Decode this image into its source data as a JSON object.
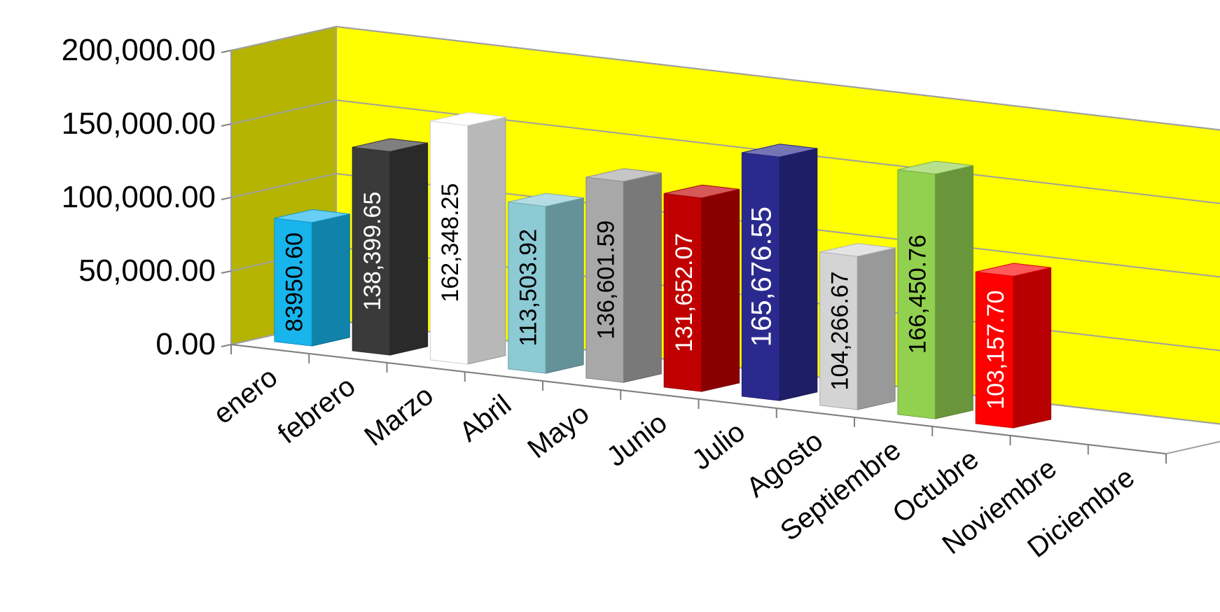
{
  "chart_data": {
    "type": "bar",
    "categories": [
      "enero",
      "febrero",
      "Marzo",
      "Abril",
      "Mayo",
      "Junio",
      "Julio",
      "Agosto",
      "Septiembre",
      "Octubre",
      "Noviembre",
      "Diciembre"
    ],
    "values": [
      83950.6,
      138399.65,
      162348.25,
      113503.92,
      136601.59,
      131652.07,
      165676.55,
      104266.67,
      166450.76,
      103157.7,
      null,
      null
    ],
    "data_labels": [
      "83950.60",
      "138,399.65",
      "162,348.25",
      "113,503.92",
      "136,601.59",
      "131,652.07",
      "165,676.55",
      "104,266.67",
      "166,450.76",
      "103,157.70",
      "",
      ""
    ],
    "y_ticks": [
      "0.00",
      "50,000.00",
      "100,000.00",
      "150,000.00",
      "200,000.00"
    ],
    "y_tick_values": [
      0,
      50000,
      100000,
      150000,
      200000
    ],
    "ylim": [
      0,
      200000
    ],
    "title": "",
    "xlabel": "",
    "ylabel": "",
    "grid": true,
    "legend": "none",
    "three_d": true,
    "colors": {
      "wall": "#ffff00",
      "side_wall": "#b3b300",
      "floor": "#ffffff",
      "gridline": "#a0a0a0",
      "axis": "#808080"
    },
    "bar_colors": [
      "#18b4ec",
      "#3a3a3a",
      "#ffffff",
      "#8ccad4",
      "#a8a8a8",
      "#c00000",
      "#2a2a8e",
      "#d4d4d4",
      "#92d050",
      "#ff0000",
      "#cccccc",
      "#cccccc"
    ],
    "label_colors": [
      "#000000",
      "#ffffff",
      "#000000",
      "#000000",
      "#000000",
      "#ffffff",
      "#ffffff",
      "#000000",
      "#000000",
      "#ffffff",
      "#000000",
      "#000000"
    ]
  }
}
